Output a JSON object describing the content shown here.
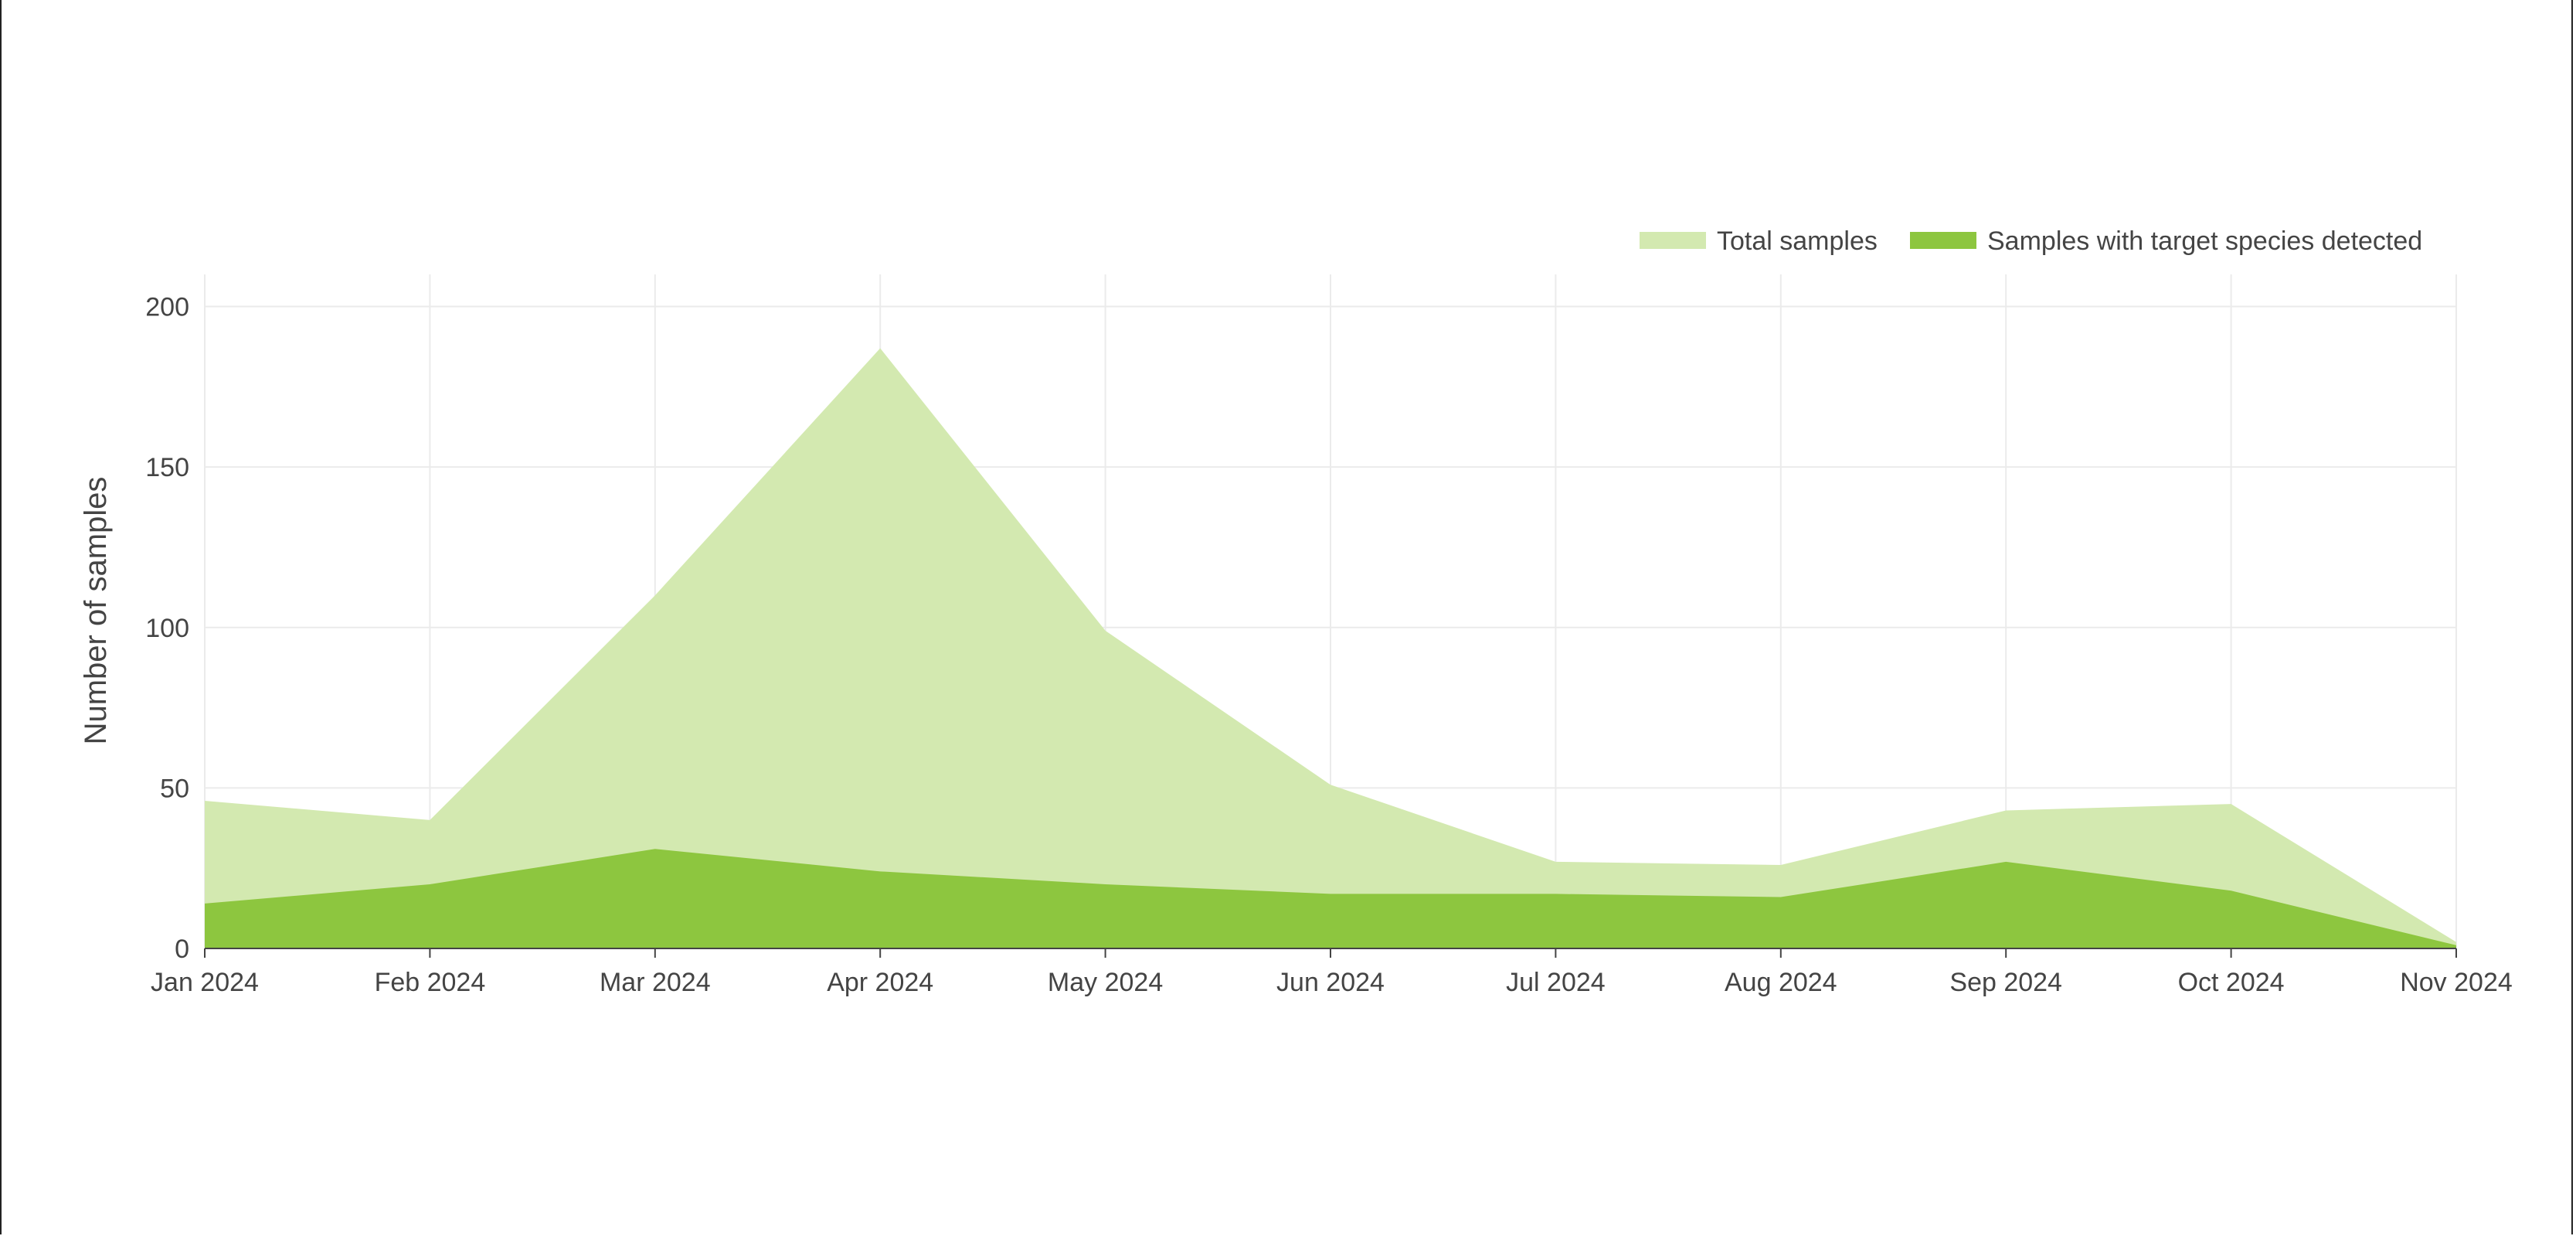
{
  "chart_data": {
    "type": "area",
    "title": "",
    "xlabel": "",
    "ylabel": "Number of samples",
    "ylim": [
      0,
      210
    ],
    "yticks": [
      0,
      50,
      100,
      150,
      200
    ],
    "grid": true,
    "legend_position": "top-right",
    "categories": [
      "Jan 2024",
      "Feb 2024",
      "Mar 2024",
      "Apr 2024",
      "May 2024",
      "Jun 2024",
      "Jul 2024",
      "Aug 2024",
      "Sep 2024",
      "Oct 2024",
      "Nov 2024"
    ],
    "series": [
      {
        "name": "Total samples",
        "color": "#d3e9b0",
        "values": [
          46,
          40,
          110,
          187,
          99,
          51,
          27,
          26,
          43,
          45,
          2
        ]
      },
      {
        "name": "Samples with target species detected",
        "color": "#8dc63f",
        "values": [
          14,
          20,
          31,
          24,
          20,
          17,
          17,
          16,
          27,
          18,
          1
        ]
      }
    ]
  }
}
